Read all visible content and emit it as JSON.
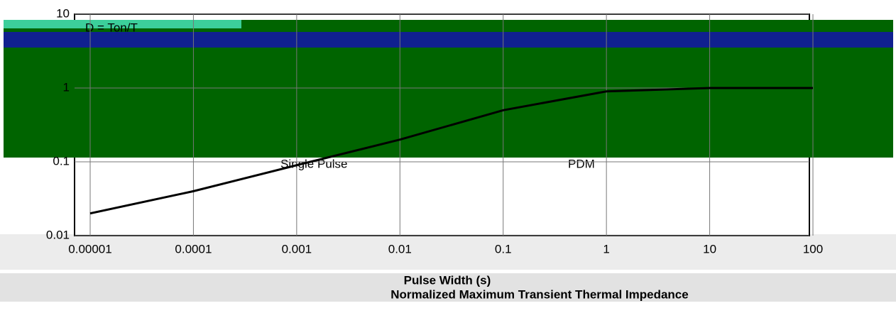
{
  "chart_data": {
    "type": "line",
    "title": "Normalized Maximum Transient Thermal Impedance",
    "x_label": "Pulse Width (s)",
    "annotations": [
      "D = Ton/T",
      "Single Pulse",
      "PDM"
    ],
    "x": [
      1e-05,
      0.0001,
      0.001,
      0.01,
      0.1,
      1,
      10,
      100
    ],
    "series": [
      {
        "name": "Single Pulse",
        "color": "#000000",
        "values": [
          0.02,
          0.04,
          0.09,
          0.2,
          0.5,
          0.9,
          1,
          1
        ]
      }
    ],
    "xlim": [
      1e-05,
      100
    ],
    "xticks": [
      1e-05,
      0.0001,
      0.001,
      0.01,
      0.1,
      1,
      10,
      100
    ],
    "ylim": [
      0.01,
      10
    ],
    "yticks": [
      10,
      1,
      0.1,
      0.01
    ],
    "log_x": true,
    "log_y": true,
    "grid": true
  }
}
